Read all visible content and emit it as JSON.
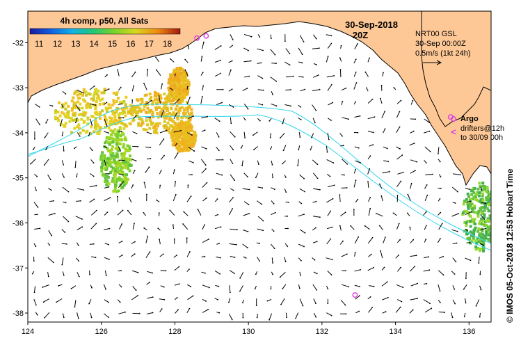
{
  "map": {
    "lon_ticks": [
      "124",
      "126",
      "128",
      "130",
      "132",
      "134",
      "136"
    ],
    "lat_ticks": [
      "-32",
      "-33",
      "-34",
      "-35",
      "-36",
      "-37",
      "-38"
    ],
    "lon_range": [
      124,
      136.6
    ],
    "lat_range": [
      -31.3,
      -38.2
    ]
  },
  "colorbar": {
    "title": "4h comp, p50, All Sats",
    "labels": [
      "11",
      "12",
      "13",
      "14",
      "15",
      "16",
      "17",
      "18"
    ],
    "range": [
      10.5,
      18.7
    ]
  },
  "header": {
    "date": "30-Sep-2018",
    "time": "20Z"
  },
  "info": {
    "line1": "NRT00 GSL",
    "line2": "30-Sep 00:00Z",
    "line3": "0.5m/s (1kt 24h)"
  },
  "legend": {
    "argo": "Argo",
    "drifters_line1": "drifters@12h",
    "drifters_line2": "to 30/09 00h"
  },
  "credit": "© IMOS 05-Oct-2018 12:53 Hobart Time",
  "argo_floats": [
    {
      "lon": 128.6,
      "lat": -31.9
    },
    {
      "lon": 128.85,
      "lat": -31.85
    },
    {
      "lon": 132.9,
      "lat": -37.6
    },
    {
      "lon": 135.5,
      "lat": -33.65
    }
  ],
  "colors": {
    "land": "#fdc896",
    "sea": "#ffffff",
    "isobath": "#2fd6ee",
    "argo": "#e040e0"
  }
}
